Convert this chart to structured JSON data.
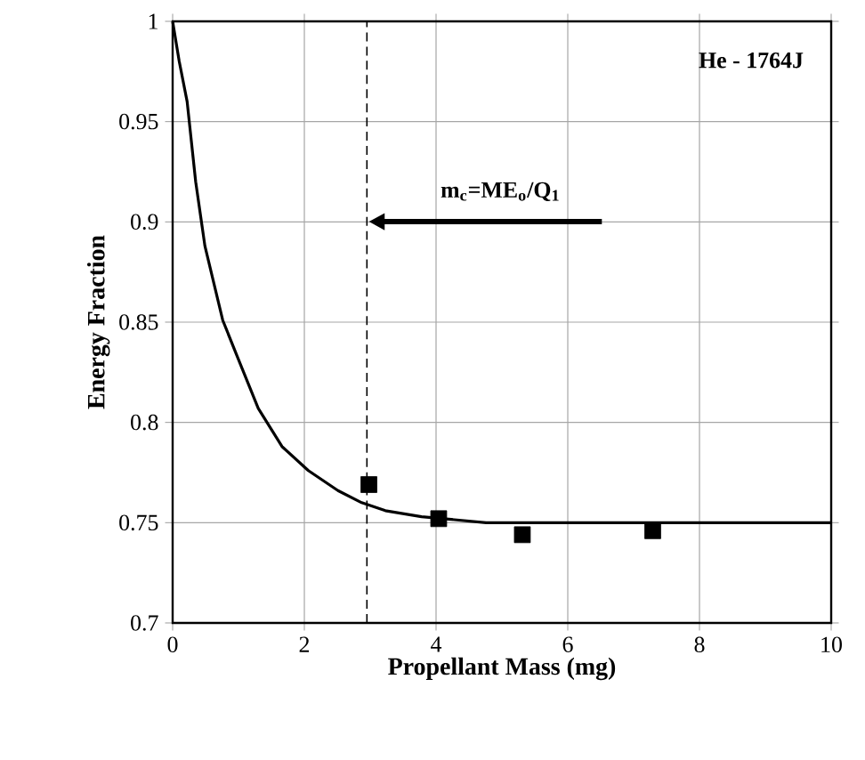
{
  "chart_data": {
    "type": "line",
    "xlabel": "Propellant Mass (mg)",
    "ylabel": "Energy Fraction",
    "xlim": [
      0,
      10
    ],
    "ylim": [
      0.7,
      1
    ],
    "xticks": [
      0,
      2,
      4,
      6,
      8,
      10
    ],
    "yticks": [
      0.7,
      0.75,
      0.8,
      0.85,
      0.9,
      0.95,
      1
    ],
    "grid": true,
    "series": [
      {
        "color": "#000000",
        "marker": "none",
        "x": [
          0,
          0.1,
          0.22,
          0.35,
          0.49,
          0.76,
          0.98,
          1.3,
          1.66,
          2.06,
          2.51,
          2.87,
          3.23,
          3.78,
          4.76,
          10
        ],
        "values": [
          1,
          0.98,
          0.96,
          0.92,
          0.888,
          0.851,
          0.833,
          0.807,
          0.788,
          0.776,
          0.766,
          0.76,
          0.756,
          0.753,
          0.75,
          0.75
        ]
      },
      {
        "type": "scatter",
        "color": "#000000",
        "marker": "square",
        "x": [
          2.98,
          4.04,
          5.31,
          7.29
        ],
        "values": [
          0.769,
          0.752,
          0.744,
          0.746
        ]
      }
    ],
    "ref_lines": [
      {
        "axis": "x",
        "value": 2.95,
        "line_style": "dashed",
        "color": "#000000"
      }
    ],
    "annotations": [
      "m$_{c}$=ME$_{o}$/Q$_{1}$",
      "He - 1764J"
    ]
  }
}
